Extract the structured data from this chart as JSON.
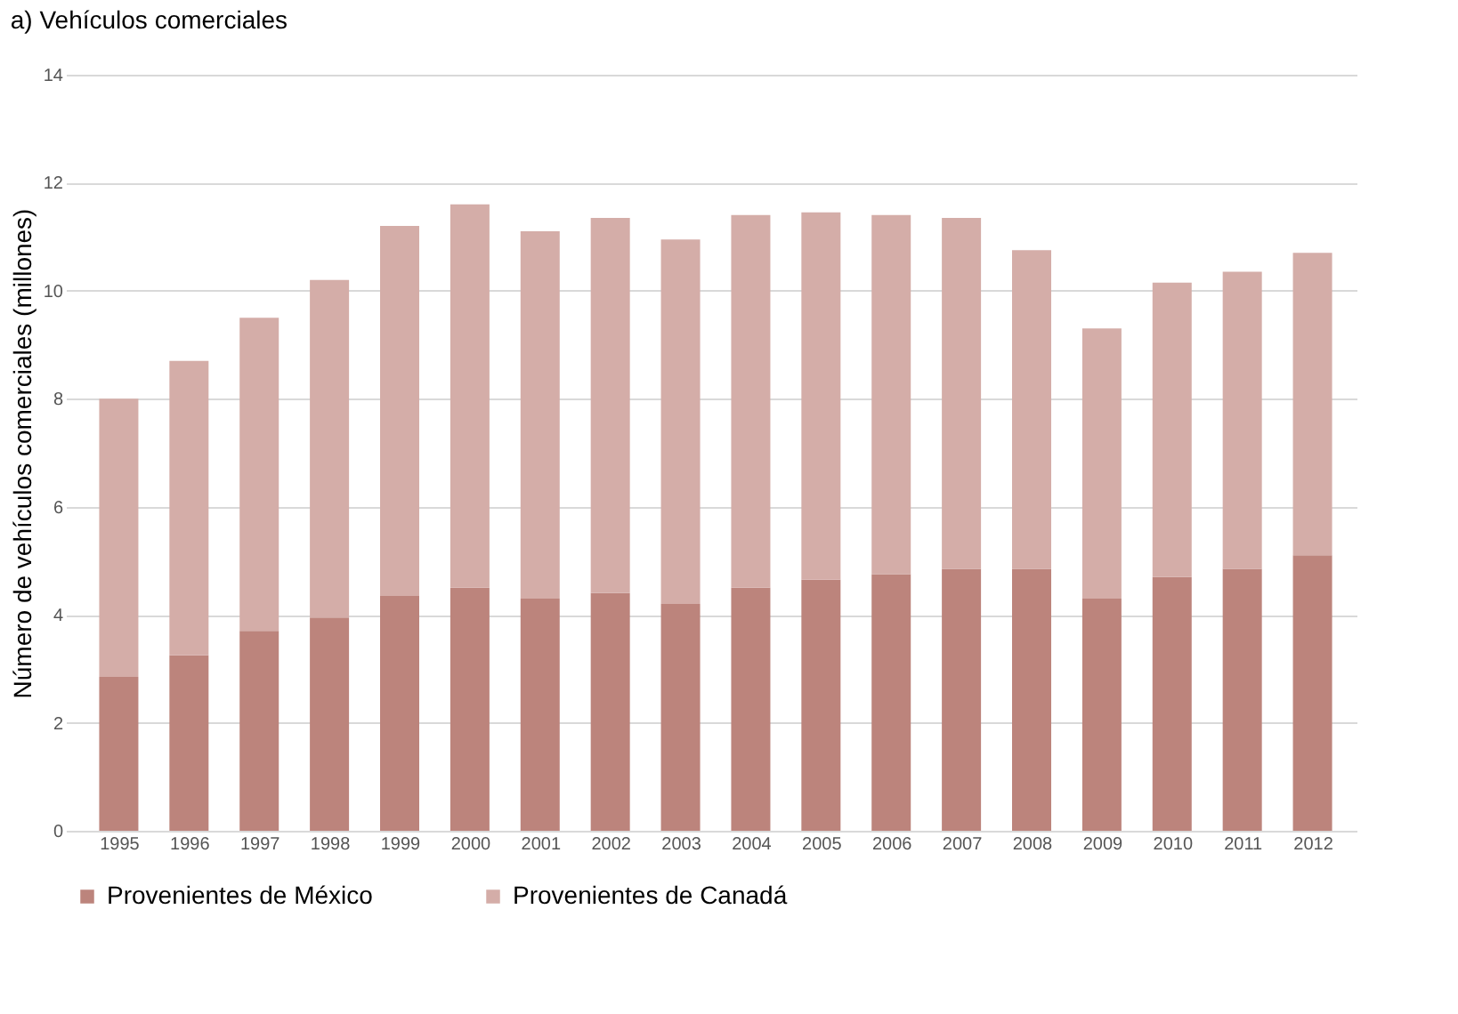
{
  "chart_data": {
    "type": "bar",
    "title": "a) Vehículos comerciales",
    "ylabel": "Número de vehículos comerciales (millones)",
    "categories": [
      "1995",
      "1996",
      "1997",
      "1998",
      "1999",
      "2000",
      "2001",
      "2002",
      "2003",
      "2004",
      "2005",
      "2006",
      "2007",
      "2008",
      "2009",
      "2010",
      "2011",
      "2012"
    ],
    "stacked": true,
    "series": [
      {
        "name": "Provenientes de México",
        "color": "#bc847c",
        "values": [
          2.85,
          3.25,
          3.7,
          3.95,
          4.35,
          4.5,
          4.3,
          4.4,
          4.2,
          4.5,
          4.65,
          4.75,
          4.85,
          4.85,
          4.3,
          4.7,
          4.85,
          5.1
        ]
      },
      {
        "name": "Provenientes de Canadá",
        "color": "#d4ada8",
        "values": [
          5.15,
          5.45,
          5.8,
          6.25,
          6.85,
          7.1,
          6.8,
          6.95,
          6.75,
          6.9,
          6.8,
          6.65,
          6.5,
          5.9,
          5.0,
          5.45,
          5.5,
          5.6
        ]
      }
    ],
    "ylim": [
      0,
      14
    ],
    "yticks": [
      0,
      2,
      4,
      6,
      8,
      10,
      12,
      14
    ],
    "grid": "y",
    "legend": "bottom"
  }
}
